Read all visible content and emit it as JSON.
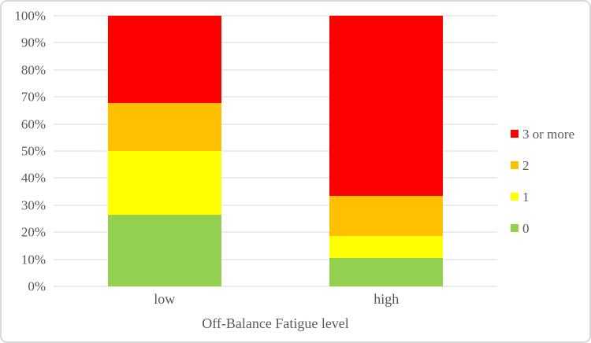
{
  "chart_data": {
    "type": "bar",
    "subtype": "stacked-100-percent",
    "categories": [
      "low",
      "high"
    ],
    "series": [
      {
        "name": "0",
        "color": "#92D050",
        "values": [
          26.5,
          10.4
        ]
      },
      {
        "name": "1",
        "color": "#FFFF00",
        "values": [
          23.5,
          8.3
        ]
      },
      {
        "name": "2",
        "color": "#FFC000",
        "values": [
          17.6,
          14.6
        ]
      },
      {
        "name": "3 or more",
        "color": "#FF0000",
        "values": [
          32.4,
          66.7
        ]
      }
    ],
    "title": "",
    "xlabel": "Off-Balance Fatigue level",
    "ylabel": "",
    "ylim": [
      0,
      100
    ],
    "y_ticks": [
      "0%",
      "10%",
      "20%",
      "30%",
      "40%",
      "50%",
      "60%",
      "70%",
      "80%",
      "90%",
      "100%"
    ],
    "y_tick_values": [
      0,
      10,
      20,
      30,
      40,
      50,
      60,
      70,
      80,
      90,
      100
    ],
    "grid": true,
    "legend_position": "right",
    "legend_order": [
      "3 or more",
      "2",
      "1",
      "0"
    ]
  },
  "colors": {
    "grid": "#D9D9D9",
    "border": "#D9D9D9",
    "text": "#595959",
    "background": "#FFFFFF"
  }
}
